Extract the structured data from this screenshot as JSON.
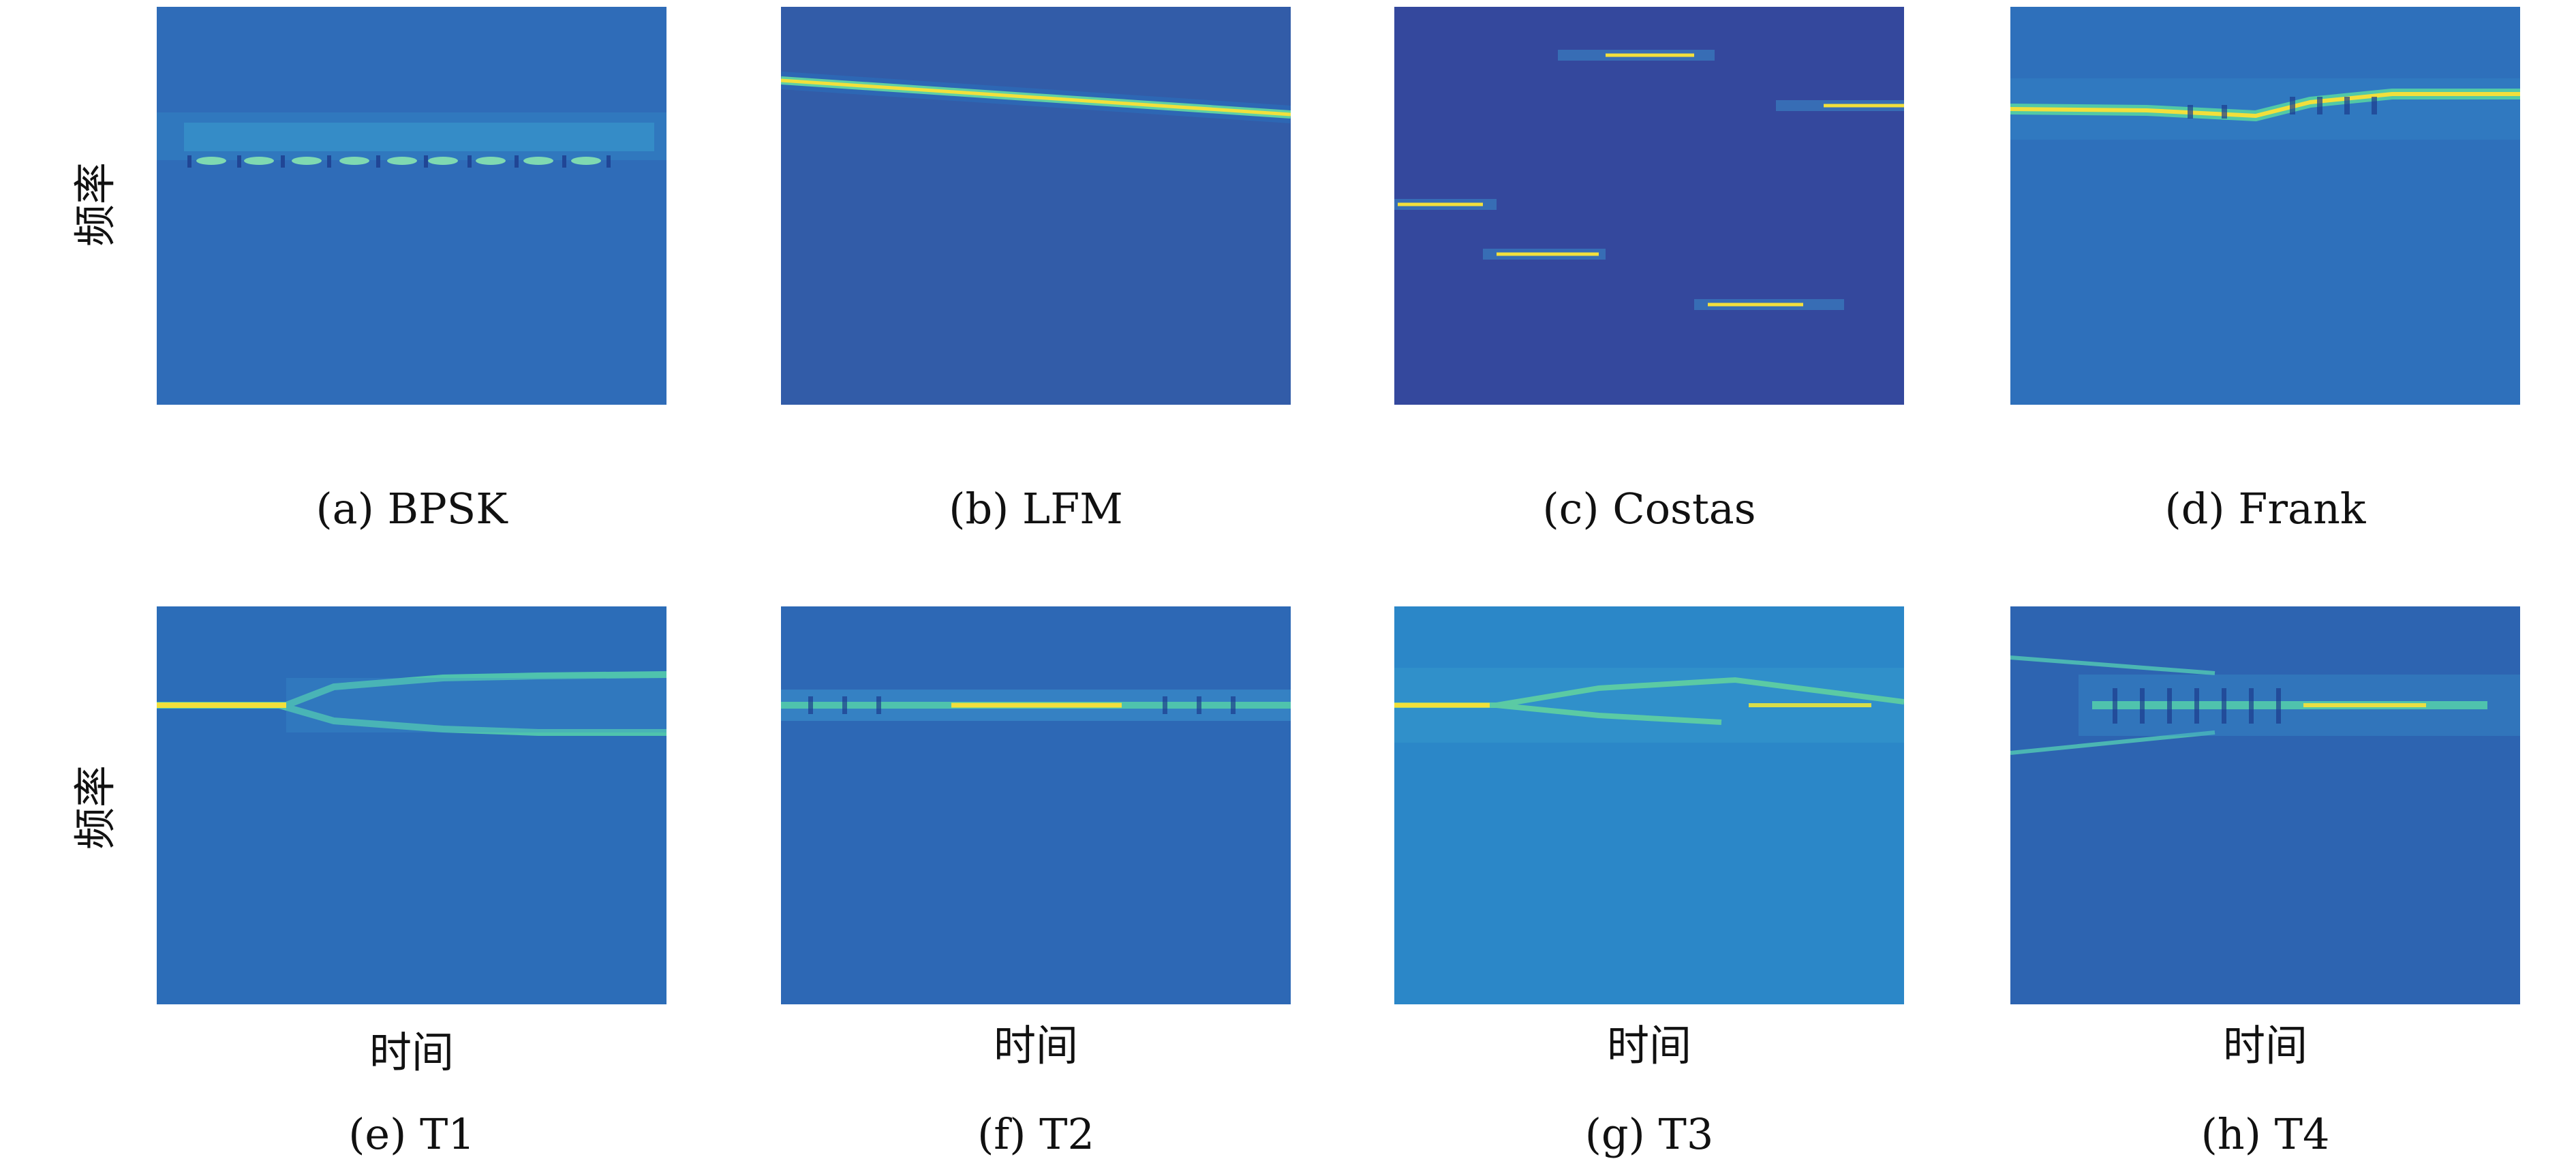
{
  "y_axis_label": "频率",
  "x_axis_label": "时间",
  "panels": [
    {
      "id": "a",
      "caption": "(a) BPSK",
      "background": "#2f6cb8",
      "signal": "BPSK"
    },
    {
      "id": "b",
      "caption": "(b) LFM",
      "background": "#325ca8",
      "signal": "LFM"
    },
    {
      "id": "c",
      "caption": "(c) Costas",
      "background": "#34489d",
      "signal": "Costas"
    },
    {
      "id": "d",
      "caption": "(d) Frank",
      "background": "#2e70bb",
      "signal": "Frank"
    },
    {
      "id": "e",
      "caption": "(e) T1",
      "background": "#2c6db8",
      "signal": "T1"
    },
    {
      "id": "f",
      "caption": "(f) T2",
      "background": "#2d68b5",
      "signal": "T2"
    },
    {
      "id": "g",
      "caption": "(g) T3",
      "background": "#2b87c8",
      "signal": "T3"
    },
    {
      "id": "h",
      "caption": "(h) T4",
      "background": "#2d64b1",
      "signal": "T4"
    }
  ],
  "colors": {
    "ridge": "#f3e03d",
    "halo": "#49c7a8",
    "dark": "#1d2f7a"
  }
}
